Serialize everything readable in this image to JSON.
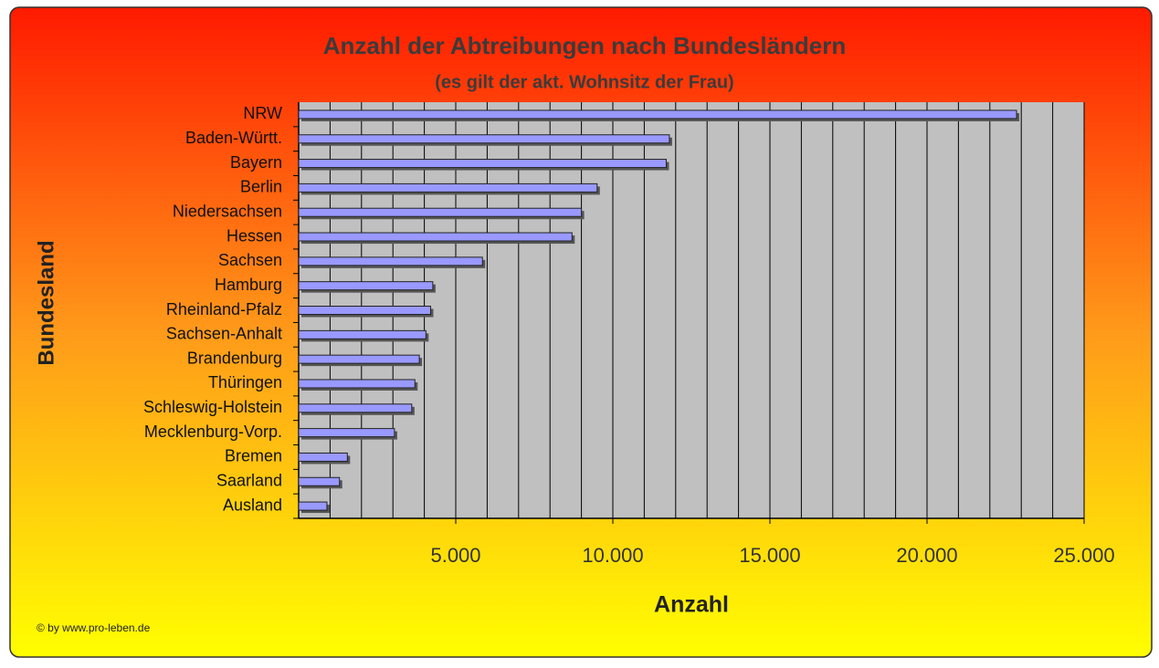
{
  "chart_data": {
    "type": "hbar",
    "title": "Anzahl der Abtreibungen nach Bundesländern",
    "subtitle": "(es gilt der akt. Wohnsitz der Frau)",
    "x_label": "Anzahl",
    "y_label": "Bundesland",
    "credit": "© by www.pro-leben.de",
    "categories": [
      "NRW",
      "Baden-Württ.",
      "Bayern",
      "Berlin",
      "Niedersachsen",
      "Hessen",
      "Sachsen",
      "Hamburg",
      "Rheinland-Pfalz",
      "Sachsen-Anhalt",
      "Brandenburg",
      "Thüringen",
      "Schleswig-Holstein",
      "Mecklenburg-Vorp.",
      "Bremen",
      "Saarland",
      "Ausland"
    ],
    "values": [
      22850,
      11800,
      11700,
      9500,
      9000,
      8700,
      5850,
      4270,
      4200,
      4050,
      3840,
      3700,
      3600,
      3050,
      1550,
      1300,
      900
    ],
    "color": "#9999ff",
    "xlim": [
      0,
      25000
    ],
    "xticks": [
      {
        "value": 5000,
        "label": "5.000"
      },
      {
        "value": 10000,
        "label": "10.000"
      },
      {
        "value": 15000,
        "label": "15.000"
      },
      {
        "value": 20000,
        "label": "20.000"
      },
      {
        "value": 25000,
        "label": "25.000"
      }
    ],
    "xgrid": [
      1000,
      2000,
      3000,
      4000,
      5000,
      6000,
      7000,
      8000,
      9000,
      10000,
      11000,
      12000,
      13000,
      14000,
      15000,
      16000,
      17000,
      18000,
      19000,
      20000,
      21000,
      22000,
      23000,
      24000,
      25000
    ],
    "grid": true
  }
}
